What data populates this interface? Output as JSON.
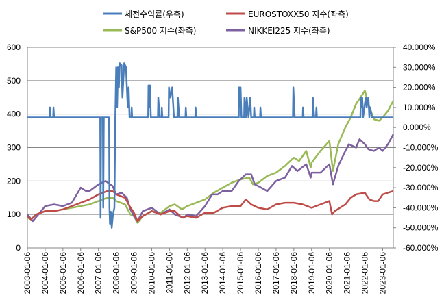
{
  "chart_data": {
    "type": "line",
    "title": "",
    "xlabel": "",
    "ylabel": "",
    "y2label": "",
    "legend_position": "top",
    "grid": "horizontal",
    "x_categories": [
      "2003-01-06",
      "2004-01-06",
      "2005-01-06",
      "2006-01-06",
      "2007-01-06",
      "2008-01-06",
      "2009-01-06",
      "2010-01-06",
      "2011-01-06",
      "2012-01-06",
      "2013-01-06",
      "2014-01-06",
      "2015-01-06",
      "2016-01-06",
      "2017-01-06",
      "2018-01-06",
      "2019-01-06",
      "2020-01-06",
      "2021-01-06",
      "2022-01-06",
      "2023-01-06"
    ],
    "x_range": [
      2003.0,
      2023.6
    ],
    "y_left": {
      "min": 0,
      "max": 600,
      "ticks": [
        "0",
        "100",
        "200",
        "300",
        "400",
        "500",
        "600"
      ]
    },
    "y_right": {
      "min": -60,
      "max": 40,
      "unit": "%",
      "ticks": [
        "-60.000%",
        "-50.000%",
        "-40.000%",
        "-30.000%",
        "-20.000%",
        "-10.000%",
        "0.000%",
        "10.000%",
        "20.000%",
        "30.000%",
        "40.000%"
      ]
    },
    "series": [
      {
        "name": "세전수익률(우축)",
        "axis": "right",
        "color": "#4a7ebb",
        "points": [
          [
            2003.0,
            5
          ],
          [
            2004.25,
            5
          ],
          [
            2004.27,
            10
          ],
          [
            2004.3,
            5
          ],
          [
            2004.45,
            5
          ],
          [
            2004.47,
            10
          ],
          [
            2004.5,
            5
          ],
          [
            2007.1,
            5
          ],
          [
            2007.12,
            -45
          ],
          [
            2007.15,
            5
          ],
          [
            2007.25,
            5
          ],
          [
            2007.27,
            -40
          ],
          [
            2007.3,
            5
          ],
          [
            2007.6,
            5
          ],
          [
            2007.62,
            -40
          ],
          [
            2007.65,
            -48
          ],
          [
            2007.7,
            -42
          ],
          [
            2007.75,
            -50
          ],
          [
            2007.8,
            -45
          ],
          [
            2007.85,
            -42
          ],
          [
            2007.9,
            -40
          ],
          [
            2007.95,
            5
          ],
          [
            2008.0,
            30
          ],
          [
            2008.05,
            10
          ],
          [
            2008.1,
            30
          ],
          [
            2008.15,
            20
          ],
          [
            2008.2,
            32
          ],
          [
            2008.3,
            31
          ],
          [
            2008.35,
            15
          ],
          [
            2008.45,
            32
          ],
          [
            2008.55,
            30
          ],
          [
            2008.6,
            20
          ],
          [
            2008.65,
            10
          ],
          [
            2008.7,
            20
          ],
          [
            2008.75,
            5
          ],
          [
            2008.85,
            5
          ],
          [
            2008.87,
            10
          ],
          [
            2008.9,
            5
          ],
          [
            2009.8,
            5
          ],
          [
            2009.82,
            21
          ],
          [
            2009.85,
            10
          ],
          [
            2009.9,
            21
          ],
          [
            2009.95,
            5
          ],
          [
            2010.35,
            5
          ],
          [
            2010.37,
            15
          ],
          [
            2010.45,
            5
          ],
          [
            2010.55,
            5
          ],
          [
            2010.57,
            10
          ],
          [
            2010.6,
            5
          ],
          [
            2010.95,
            5
          ],
          [
            2010.97,
            20
          ],
          [
            2011.05,
            15
          ],
          [
            2011.15,
            20
          ],
          [
            2011.25,
            5
          ],
          [
            2011.45,
            5
          ],
          [
            2011.47,
            15
          ],
          [
            2011.55,
            5
          ],
          [
            2011.9,
            5
          ],
          [
            2011.92,
            10
          ],
          [
            2011.95,
            5
          ],
          [
            2012.45,
            5
          ],
          [
            2012.47,
            10
          ],
          [
            2012.5,
            5
          ],
          [
            2014.9,
            5
          ],
          [
            2014.92,
            20
          ],
          [
            2014.95,
            10
          ],
          [
            2015.0,
            20
          ],
          [
            2015.05,
            5
          ],
          [
            2015.2,
            5
          ],
          [
            2015.22,
            15
          ],
          [
            2015.3,
            5
          ],
          [
            2015.35,
            15
          ],
          [
            2015.45,
            5
          ],
          [
            2015.55,
            15
          ],
          [
            2015.6,
            5
          ],
          [
            2015.75,
            5
          ],
          [
            2015.77,
            10
          ],
          [
            2015.8,
            5
          ],
          [
            2016.1,
            5
          ],
          [
            2016.12,
            10
          ],
          [
            2016.15,
            5
          ],
          [
            2017.95,
            5
          ],
          [
            2017.97,
            20
          ],
          [
            2018.02,
            10
          ],
          [
            2018.05,
            5
          ],
          [
            2018.5,
            5
          ],
          [
            2018.52,
            10
          ],
          [
            2018.55,
            5
          ],
          [
            2019.05,
            5
          ],
          [
            2019.07,
            15
          ],
          [
            2019.15,
            5
          ],
          [
            2019.25,
            5
          ],
          [
            2019.27,
            10
          ],
          [
            2019.3,
            5
          ],
          [
            2021.75,
            5
          ],
          [
            2021.77,
            15
          ],
          [
            2021.8,
            10
          ],
          [
            2021.85,
            15
          ],
          [
            2021.9,
            5
          ],
          [
            2022.05,
            15
          ],
          [
            2022.1,
            10
          ],
          [
            2022.2,
            15
          ],
          [
            2022.25,
            5
          ],
          [
            2022.3,
            10
          ],
          [
            2022.4,
            5
          ],
          [
            2023.6,
            5
          ]
        ]
      },
      {
        "name": "EUROSTOXX50 지수(좌측)",
        "axis": "left",
        "color": "#be4b48",
        "points": [
          [
            2003.0,
            95
          ],
          [
            2003.2,
            85
          ],
          [
            2003.5,
            100
          ],
          [
            2004.0,
            110
          ],
          [
            2004.5,
            110
          ],
          [
            2005.0,
            115
          ],
          [
            2005.5,
            125
          ],
          [
            2006.0,
            135
          ],
          [
            2006.5,
            145
          ],
          [
            2007.0,
            160
          ],
          [
            2007.5,
            170
          ],
          [
            2007.8,
            170
          ],
          [
            2008.0,
            160
          ],
          [
            2008.5,
            150
          ],
          [
            2008.75,
            125
          ],
          [
            2009.0,
            105
          ],
          [
            2009.2,
            80
          ],
          [
            2009.5,
            95
          ],
          [
            2010.0,
            110
          ],
          [
            2010.5,
            100
          ],
          [
            2011.0,
            110
          ],
          [
            2011.3,
            110
          ],
          [
            2011.7,
            90
          ],
          [
            2012.0,
            95
          ],
          [
            2012.5,
            90
          ],
          [
            2013.0,
            105
          ],
          [
            2013.5,
            105
          ],
          [
            2014.0,
            120
          ],
          [
            2014.5,
            125
          ],
          [
            2015.0,
            125
          ],
          [
            2015.3,
            145
          ],
          [
            2015.6,
            130
          ],
          [
            2016.0,
            120
          ],
          [
            2016.5,
            115
          ],
          [
            2017.0,
            130
          ],
          [
            2017.5,
            135
          ],
          [
            2018.0,
            135
          ],
          [
            2018.5,
            130
          ],
          [
            2019.0,
            120
          ],
          [
            2019.5,
            130
          ],
          [
            2020.0,
            140
          ],
          [
            2020.15,
            100
          ],
          [
            2020.3,
            110
          ],
          [
            2020.6,
            120
          ],
          [
            2020.9,
            130
          ],
          [
            2021.2,
            150
          ],
          [
            2021.5,
            160
          ],
          [
            2022.0,
            165
          ],
          [
            2022.25,
            145
          ],
          [
            2022.5,
            140
          ],
          [
            2022.75,
            140
          ],
          [
            2023.0,
            160
          ],
          [
            2023.3,
            165
          ],
          [
            2023.6,
            170
          ]
        ]
      },
      {
        "name": "S&P500 지수(좌측)",
        "axis": "left",
        "color": "#98b954",
        "points": [
          [
            2003.0,
            90
          ],
          [
            2003.2,
            85
          ],
          [
            2003.5,
            100
          ],
          [
            2004.0,
            110
          ],
          [
            2004.5,
            110
          ],
          [
            2005.0,
            115
          ],
          [
            2005.5,
            120
          ],
          [
            2006.0,
            125
          ],
          [
            2006.5,
            130
          ],
          [
            2007.0,
            140
          ],
          [
            2007.5,
            150
          ],
          [
            2007.8,
            150
          ],
          [
            2008.0,
            140
          ],
          [
            2008.5,
            130
          ],
          [
            2008.8,
            100
          ],
          [
            2009.0,
            95
          ],
          [
            2009.2,
            75
          ],
          [
            2009.5,
            95
          ],
          [
            2010.0,
            110
          ],
          [
            2010.5,
            105
          ],
          [
            2011.0,
            125
          ],
          [
            2011.3,
            130
          ],
          [
            2011.7,
            115
          ],
          [
            2012.0,
            125
          ],
          [
            2012.5,
            135
          ],
          [
            2013.0,
            145
          ],
          [
            2013.5,
            165
          ],
          [
            2014.0,
            180
          ],
          [
            2014.5,
            195
          ],
          [
            2015.0,
            205
          ],
          [
            2015.5,
            210
          ],
          [
            2015.7,
            190
          ],
          [
            2016.0,
            195
          ],
          [
            2016.5,
            215
          ],
          [
            2017.0,
            225
          ],
          [
            2017.5,
            245
          ],
          [
            2018.0,
            270
          ],
          [
            2018.3,
            260
          ],
          [
            2018.7,
            290
          ],
          [
            2018.95,
            240
          ],
          [
            2019.0,
            255
          ],
          [
            2019.5,
            290
          ],
          [
            2020.0,
            320
          ],
          [
            2020.2,
            230
          ],
          [
            2020.5,
            310
          ],
          [
            2020.9,
            360
          ],
          [
            2021.2,
            390
          ],
          [
            2021.5,
            430
          ],
          [
            2022.0,
            470
          ],
          [
            2022.2,
            430
          ],
          [
            2022.5,
            385
          ],
          [
            2022.8,
            380
          ],
          [
            2023.0,
            390
          ],
          [
            2023.3,
            410
          ],
          [
            2023.6,
            440
          ]
        ]
      },
      {
        "name": "NIKKEI225 지수(좌측)",
        "axis": "left",
        "color": "#7d60a0",
        "points": [
          [
            2003.0,
            100
          ],
          [
            2003.3,
            80
          ],
          [
            2003.7,
            105
          ],
          [
            2004.0,
            125
          ],
          [
            2004.5,
            130
          ],
          [
            2005.0,
            125
          ],
          [
            2005.5,
            135
          ],
          [
            2006.0,
            180
          ],
          [
            2006.3,
            170
          ],
          [
            2006.5,
            170
          ],
          [
            2007.0,
            190
          ],
          [
            2007.4,
            200
          ],
          [
            2007.8,
            185
          ],
          [
            2008.0,
            160
          ],
          [
            2008.3,
            165
          ],
          [
            2008.6,
            150
          ],
          [
            2008.8,
            115
          ],
          [
            2009.0,
            95
          ],
          [
            2009.2,
            80
          ],
          [
            2009.5,
            110
          ],
          [
            2010.0,
            120
          ],
          [
            2010.5,
            100
          ],
          [
            2011.0,
            115
          ],
          [
            2011.3,
            100
          ],
          [
            2011.8,
            90
          ],
          [
            2012.0,
            100
          ],
          [
            2012.5,
            95
          ],
          [
            2013.0,
            125
          ],
          [
            2013.4,
            160
          ],
          [
            2013.7,
            160
          ],
          [
            2014.0,
            170
          ],
          [
            2014.5,
            170
          ],
          [
            2014.9,
            200
          ],
          [
            2015.3,
            220
          ],
          [
            2015.6,
            220
          ],
          [
            2015.8,
            190
          ],
          [
            2016.0,
            185
          ],
          [
            2016.5,
            170
          ],
          [
            2017.0,
            200
          ],
          [
            2017.5,
            210
          ],
          [
            2017.9,
            245
          ],
          [
            2018.2,
            230
          ],
          [
            2018.7,
            250
          ],
          [
            2018.95,
            210
          ],
          [
            2019.0,
            225
          ],
          [
            2019.5,
            225
          ],
          [
            2020.0,
            250
          ],
          [
            2020.2,
            190
          ],
          [
            2020.5,
            245
          ],
          [
            2020.9,
            290
          ],
          [
            2021.1,
            310
          ],
          [
            2021.5,
            300
          ],
          [
            2021.7,
            325
          ],
          [
            2022.0,
            310
          ],
          [
            2022.2,
            295
          ],
          [
            2022.5,
            290
          ],
          [
            2022.8,
            300
          ],
          [
            2023.0,
            290
          ],
          [
            2023.3,
            310
          ],
          [
            2023.6,
            340
          ]
        ]
      }
    ]
  }
}
